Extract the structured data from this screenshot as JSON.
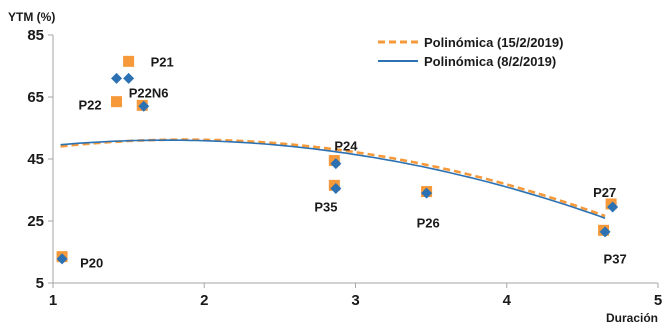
{
  "chart_data": {
    "type": "scatter",
    "title": "",
    "ylabel": "YTM (%)",
    "xlabel": "Duración",
    "xlim": [
      1,
      5
    ],
    "ylim": [
      5,
      85
    ],
    "xticks": [
      1,
      2,
      3,
      4,
      5
    ],
    "yticks": [
      5,
      25,
      45,
      65,
      85
    ],
    "grid": false,
    "legend_position": "top-right",
    "colors": {
      "date1": "#f5993a",
      "date2": "#2c72b2",
      "axis": "#a6a6a6"
    },
    "series": [
      {
        "name": "15/2/2019",
        "marker": "square",
        "points": [
          {
            "x": 1.06,
            "y": 13.5
          },
          {
            "x": 1.42,
            "y": 63.5
          },
          {
            "x": 1.5,
            "y": 76.5
          },
          {
            "x": 1.59,
            "y": 62.3
          },
          {
            "x": 2.86,
            "y": 44.5
          },
          {
            "x": 2.86,
            "y": 36.5
          },
          {
            "x": 3.47,
            "y": 34.5
          },
          {
            "x": 4.64,
            "y": 22.0
          },
          {
            "x": 4.69,
            "y": 30.5
          }
        ]
      },
      {
        "name": "8/2/2019",
        "marker": "diamond",
        "points": [
          {
            "x": 1.06,
            "y": 12.8
          },
          {
            "x": 1.42,
            "y": 71.0
          },
          {
            "x": 1.5,
            "y": 71.0
          },
          {
            "x": 1.6,
            "y": 62.0
          },
          {
            "x": 2.87,
            "y": 43.5
          },
          {
            "x": 2.87,
            "y": 35.5
          },
          {
            "x": 3.47,
            "y": 34.0
          },
          {
            "x": 4.65,
            "y": 21.5
          },
          {
            "x": 4.7,
            "y": 29.5
          }
        ]
      }
    ],
    "trendlines": [
      {
        "name": "Polinómica (15/2/2019)",
        "style": "dashed",
        "coeffs": [
          40.0,
          12.0,
          -3.2
        ]
      },
      {
        "name": "Polinómica (8/2/2019)",
        "style": "solid",
        "coeffs": [
          41.86,
          10.52,
          -3.0
        ]
      }
    ],
    "point_labels": [
      {
        "text": "P21",
        "x": 1.5,
        "y": 76.5,
        "dx": 22,
        "dy": 0
      },
      {
        "text": "P22",
        "x": 1.42,
        "y": 63.5,
        "dx": -38,
        "dy": 3
      },
      {
        "text": "P22N6",
        "x": 1.6,
        "y": 62.0,
        "dx": -15,
        "dy": -14
      },
      {
        "text": "P24",
        "x": 2.86,
        "y": 44.5,
        "dx": 0,
        "dy": -15
      },
      {
        "text": "P35",
        "x": 2.86,
        "y": 36.5,
        "dx": -20,
        "dy": 21
      },
      {
        "text": "P26",
        "x": 3.47,
        "y": 34.5,
        "dx": -10,
        "dy": 31
      },
      {
        "text": "P27",
        "x": 4.69,
        "y": 30.5,
        "dx": -18,
        "dy": -12
      },
      {
        "text": "P37",
        "x": 4.64,
        "y": 22.0,
        "dx": 0,
        "dy": 28
      },
      {
        "text": "P20",
        "x": 1.06,
        "y": 13.5,
        "dx": 18,
        "dy": 6
      }
    ]
  }
}
